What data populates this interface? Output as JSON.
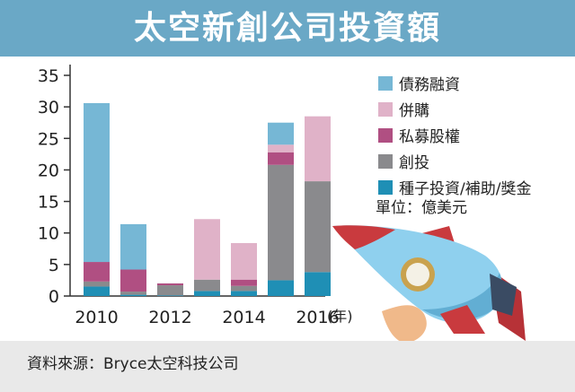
{
  "title": "太空新創公司投資額",
  "source": "資料來源：Bryce太空科技公司",
  "unit_note": "單位：億美元",
  "x_suffix": "(年)",
  "chart_data": {
    "type": "bar",
    "stacked": true,
    "title": "太空新創公司投資額",
    "xlabel": "",
    "ylabel": "",
    "ylim": [
      0,
      35
    ],
    "yticks": [
      0,
      5,
      10,
      15,
      20,
      25,
      30,
      35
    ],
    "categories": [
      "2010",
      "2011",
      "2012",
      "2013",
      "2014",
      "2015",
      "2016"
    ],
    "xtick_labels": [
      "2010",
      "",
      "2012",
      "",
      "2014",
      "",
      "2016"
    ],
    "legend_position": "right",
    "grid": false,
    "series": [
      {
        "name": "種子投資/補助/獎金",
        "color": "#1f8fb5",
        "values": [
          1.5,
          0.2,
          0.1,
          0.8,
          0.8,
          2.5,
          3.8
        ]
      },
      {
        "name": "創投",
        "color": "#8a8a8d",
        "values": [
          0.8,
          0.5,
          1.6,
          1.8,
          0.8,
          18.3,
          14.4
        ]
      },
      {
        "name": "私募股權",
        "color": "#b04f82",
        "values": [
          3.1,
          3.5,
          0.3,
          0.0,
          1.0,
          2.0,
          0.0
        ]
      },
      {
        "name": "併購",
        "color": "#e0b2c8",
        "values": [
          0.0,
          0.0,
          0.0,
          9.6,
          5.8,
          1.2,
          10.3
        ]
      },
      {
        "name": "債務融資",
        "color": "#76b7d5",
        "values": [
          25.2,
          7.2,
          0.0,
          0.0,
          0.0,
          3.5,
          0.0
        ]
      }
    ],
    "legend_order": [
      "債務融資",
      "併購",
      "私募股權",
      "創投",
      "種子投資/補助/獎金"
    ]
  }
}
